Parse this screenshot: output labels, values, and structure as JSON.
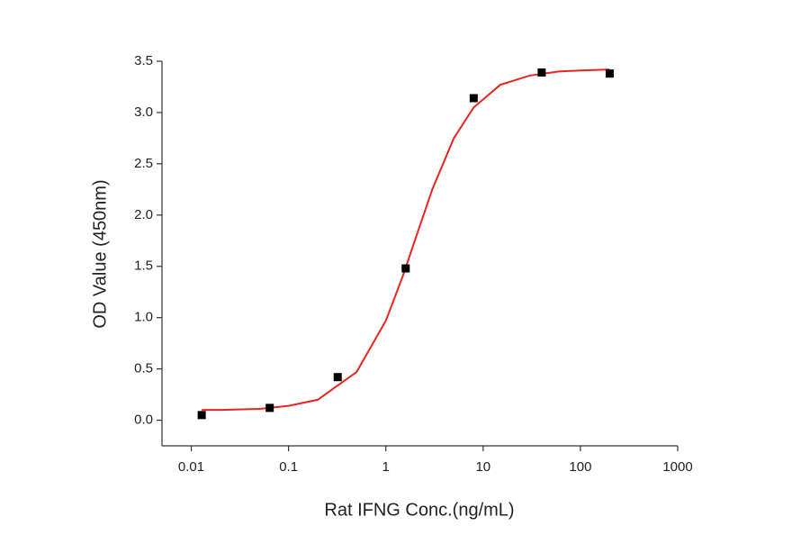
{
  "chart_data": {
    "type": "scatter",
    "xlabel": "Rat IFNG Conc.(ng/mL)",
    "ylabel": "OD Value (450nm)",
    "xscale": "log",
    "xlim": [
      0.005,
      1000
    ],
    "xticks": [
      0.01,
      0.1,
      1,
      10,
      100,
      1000
    ],
    "ylim": [
      -0.25,
      3.5
    ],
    "yticks": [
      {
        "value": 0,
        "label": "0.0"
      },
      0.5,
      {
        "value": 1,
        "label": "1.0"
      },
      1.5,
      {
        "value": 2,
        "label": "2.0"
      },
      2.5,
      {
        "value": 3,
        "label": "3.0"
      },
      3.5
    ],
    "series": [
      {
        "type": "line",
        "color": "#e8251f",
        "x": [
          0.0128,
          0.02,
          0.05,
          0.1,
          0.2,
          0.5,
          1,
          1.5,
          2,
          3,
          5,
          8,
          15,
          30,
          60,
          100,
          200
        ],
        "values": [
          0.1,
          0.1,
          0.11,
          0.14,
          0.2,
          0.47,
          0.97,
          1.41,
          1.76,
          2.25,
          2.75,
          3.05,
          3.27,
          3.36,
          3.4,
          3.41,
          3.42
        ]
      },
      {
        "type": "scatter",
        "color": "#000000",
        "x": [
          0.0128,
          0.064,
          0.32,
          1.6,
          8,
          40,
          200
        ],
        "values": [
          0.05,
          0.12,
          0.42,
          1.48,
          3.14,
          3.39,
          3.38
        ]
      }
    ]
  }
}
